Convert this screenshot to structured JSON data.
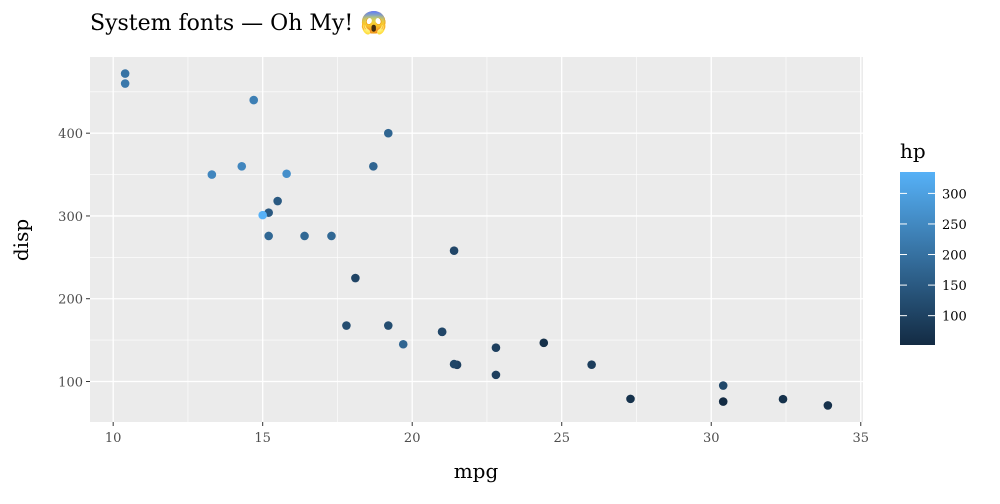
{
  "chart_data": {
    "type": "scatter",
    "title": "System fonts — Oh My! 😱",
    "xlabel": "mpg",
    "ylabel": "disp",
    "xlim": [
      9.225,
      35.075
    ],
    "ylim": [
      51.05,
      492.05
    ],
    "xticks": [
      10,
      15,
      20,
      25,
      30,
      35
    ],
    "yticks": [
      100,
      200,
      300,
      400
    ],
    "grid": true,
    "legend": {
      "title": "hp",
      "placement": "right",
      "type": "colorbar",
      "range": [
        52,
        335
      ],
      "ticks": [
        100,
        150,
        200,
        250,
        300
      ],
      "low_color": "#132B43",
      "high_color": "#56B1F7"
    },
    "points": [
      {
        "mpg": 21.0,
        "disp": 160,
        "hp": 110
      },
      {
        "mpg": 21.0,
        "disp": 160,
        "hp": 110
      },
      {
        "mpg": 22.8,
        "disp": 108,
        "hp": 93
      },
      {
        "mpg": 21.4,
        "disp": 258,
        "hp": 110
      },
      {
        "mpg": 18.7,
        "disp": 360,
        "hp": 175
      },
      {
        "mpg": 18.1,
        "disp": 225,
        "hp": 105
      },
      {
        "mpg": 14.3,
        "disp": 360,
        "hp": 245
      },
      {
        "mpg": 24.4,
        "disp": 146.7,
        "hp": 62
      },
      {
        "mpg": 22.8,
        "disp": 140.8,
        "hp": 95
      },
      {
        "mpg": 19.2,
        "disp": 167.6,
        "hp": 123
      },
      {
        "mpg": 17.8,
        "disp": 167.6,
        "hp": 123
      },
      {
        "mpg": 16.4,
        "disp": 275.8,
        "hp": 180
      },
      {
        "mpg": 17.3,
        "disp": 275.8,
        "hp": 180
      },
      {
        "mpg": 15.2,
        "disp": 275.8,
        "hp": 180
      },
      {
        "mpg": 10.4,
        "disp": 472,
        "hp": 205
      },
      {
        "mpg": 10.4,
        "disp": 460,
        "hp": 215
      },
      {
        "mpg": 14.7,
        "disp": 440,
        "hp": 230
      },
      {
        "mpg": 32.4,
        "disp": 78.7,
        "hp": 66
      },
      {
        "mpg": 30.4,
        "disp": 75.7,
        "hp": 52
      },
      {
        "mpg": 33.9,
        "disp": 71.1,
        "hp": 65
      },
      {
        "mpg": 21.5,
        "disp": 120.1,
        "hp": 97
      },
      {
        "mpg": 15.5,
        "disp": 318,
        "hp": 150
      },
      {
        "mpg": 15.2,
        "disp": 304,
        "hp": 150
      },
      {
        "mpg": 13.3,
        "disp": 350,
        "hp": 245
      },
      {
        "mpg": 19.2,
        "disp": 400,
        "hp": 175
      },
      {
        "mpg": 27.3,
        "disp": 79,
        "hp": 66
      },
      {
        "mpg": 26.0,
        "disp": 120.3,
        "hp": 91
      },
      {
        "mpg": 30.4,
        "disp": 95.1,
        "hp": 113
      },
      {
        "mpg": 15.8,
        "disp": 351,
        "hp": 264
      },
      {
        "mpg": 19.7,
        "disp": 145,
        "hp": 175
      },
      {
        "mpg": 15.0,
        "disp": 301,
        "hp": 335
      },
      {
        "mpg": 21.4,
        "disp": 121,
        "hp": 109
      }
    ]
  }
}
